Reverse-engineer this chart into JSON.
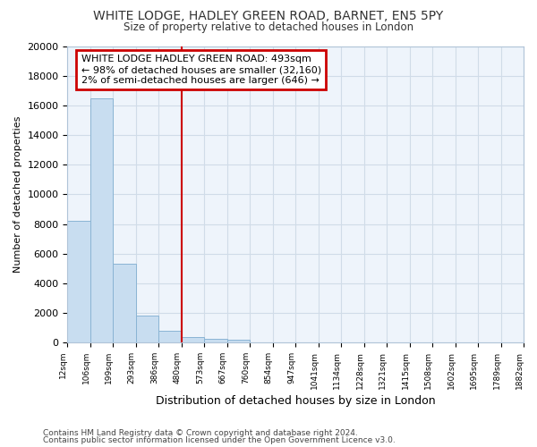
{
  "title1": "WHITE LODGE, HADLEY GREEN ROAD, BARNET, EN5 5PY",
  "title2": "Size of property relative to detached houses in London",
  "xlabel": "Distribution of detached houses by size in London",
  "ylabel": "Number of detached properties",
  "bar_values": [
    8200,
    16500,
    5300,
    1800,
    800,
    350,
    250,
    200,
    0,
    0,
    0,
    0,
    0,
    0,
    0,
    0,
    0,
    0,
    0,
    0
  ],
  "bin_edges": [
    0,
    1,
    2,
    3,
    4,
    5,
    6,
    7,
    8,
    9,
    10,
    11,
    12,
    13,
    14,
    15,
    16,
    17,
    18,
    19,
    20
  ],
  "bin_labels": [
    "12sqm",
    "106sqm",
    "199sqm",
    "293sqm",
    "386sqm",
    "480sqm",
    "573sqm",
    "667sqm",
    "760sqm",
    "854sqm",
    "947sqm",
    "1041sqm",
    "1134sqm",
    "1228sqm",
    "1321sqm",
    "1415sqm",
    "1508sqm",
    "1602sqm",
    "1695sqm",
    "1789sqm",
    "1882sqm"
  ],
  "bar_color": "#c8ddf0",
  "bar_edge_color": "#8ab4d4",
  "fig_background": "#ffffff",
  "plot_background": "#eef4fb",
  "grid_color": "#d0dce8",
  "vline_x": 5,
  "vline_color": "#cc0000",
  "annotation_text": "WHITE LODGE HADLEY GREEN ROAD: 493sqm\n← 98% of detached houses are smaller (32,160)\n2% of semi-detached houses are larger (646) →",
  "annotation_box_color": "#ffffff",
  "annotation_box_edge": "#cc0000",
  "ylim": [
    0,
    20000
  ],
  "yticks": [
    0,
    2000,
    4000,
    6000,
    8000,
    10000,
    12000,
    14000,
    16000,
    18000,
    20000
  ],
  "footnote1": "Contains HM Land Registry data © Crown copyright and database right 2024.",
  "footnote2": "Contains public sector information licensed under the Open Government Licence v3.0."
}
